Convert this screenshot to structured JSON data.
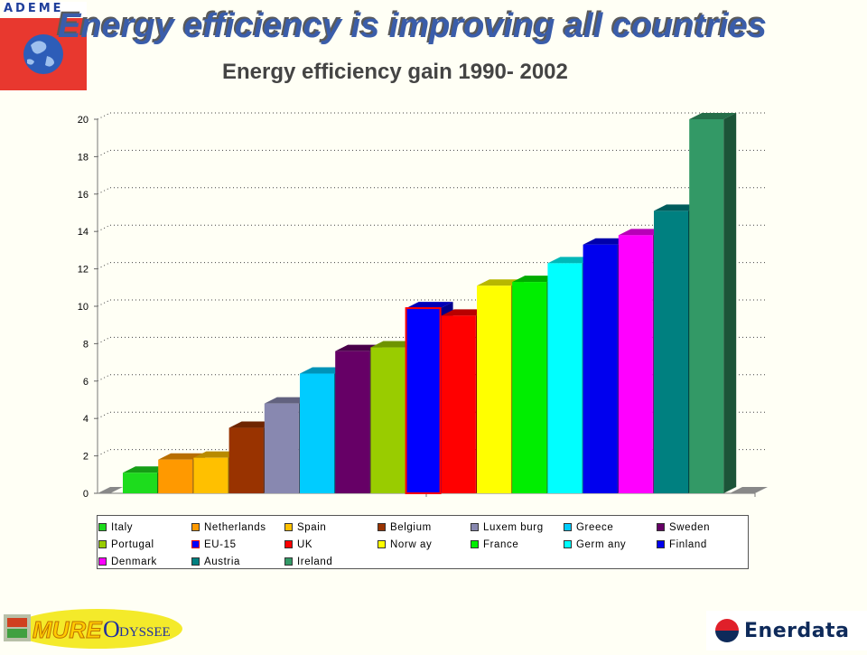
{
  "header": {
    "logo_text": "ADEME",
    "headline": "Energy efficiency is improving all countries",
    "subtitle": "Energy efficiency gain 1990- 2002"
  },
  "chart_data": {
    "type": "bar",
    "categories": [
      "Italy",
      "Netherlands",
      "Spain",
      "Belgium",
      "Luxemburg",
      "Greece",
      "Sweden",
      "Portugal",
      "EU-15",
      "UK",
      "Norway",
      "France",
      "Germany",
      "Finland",
      "Denmark",
      "Austria",
      "Ireland"
    ],
    "values": [
      1.1,
      1.8,
      1.9,
      3.5,
      4.8,
      6.4,
      7.6,
      7.8,
      9.9,
      9.5,
      11.1,
      11.3,
      12.3,
      13.3,
      13.8,
      15.1,
      20.0
    ],
    "colors": [
      "#1ddc1d",
      "#ff9900",
      "#ffc000",
      "#993300",
      "#8888b0",
      "#00ccff",
      "#660066",
      "#99cc00",
      "#0000ff",
      "#ff0000",
      "#ffff00",
      "#00ee00",
      "#00ffff",
      "#0000ee",
      "#ff00ff",
      "#008080",
      "#339966"
    ],
    "ylim": [
      0,
      20
    ],
    "yticks": [
      "0",
      "2",
      "4",
      "6",
      "8",
      "10",
      "12",
      "14",
      "16",
      "18",
      "20"
    ],
    "grid": true,
    "legend_position": "bottom",
    "title": "Energy efficiency gain 1990- 2002",
    "xlabel": "",
    "ylabel": ""
  },
  "legend": {
    "items": [
      {
        "label": "Italy",
        "color": "#1ddc1d"
      },
      {
        "label": "Netherlands",
        "color": "#ff9900"
      },
      {
        "label": "Spain",
        "color": "#ffc000"
      },
      {
        "label": "Belgium",
        "color": "#993300"
      },
      {
        "label": "Luxem burg",
        "color": "#8888b0"
      },
      {
        "label": "Greece",
        "color": "#00ccff"
      },
      {
        "label": "Sweden",
        "color": "#660066"
      },
      {
        "label": "Portugal",
        "color": "#99cc00"
      },
      {
        "label": "EU-15",
        "color": "#0000ff"
      },
      {
        "label": "UK",
        "color": "#ff0000"
      },
      {
        "label": "Norw ay",
        "color": "#ffff00"
      },
      {
        "label": "France",
        "color": "#00ee00"
      },
      {
        "label": "Germ any",
        "color": "#00ffff"
      },
      {
        "label": "Finland",
        "color": "#0000ee"
      },
      {
        "label": "Denmark",
        "color": "#ff00ff"
      },
      {
        "label": "Austria",
        "color": "#008080"
      },
      {
        "label": "Ireland",
        "color": "#339966"
      }
    ]
  },
  "footer": {
    "mure_text": "MURE",
    "odyssee_text": "DYSSEE",
    "odyssee_initial": "O",
    "enerdata_text": "Enerdata"
  }
}
